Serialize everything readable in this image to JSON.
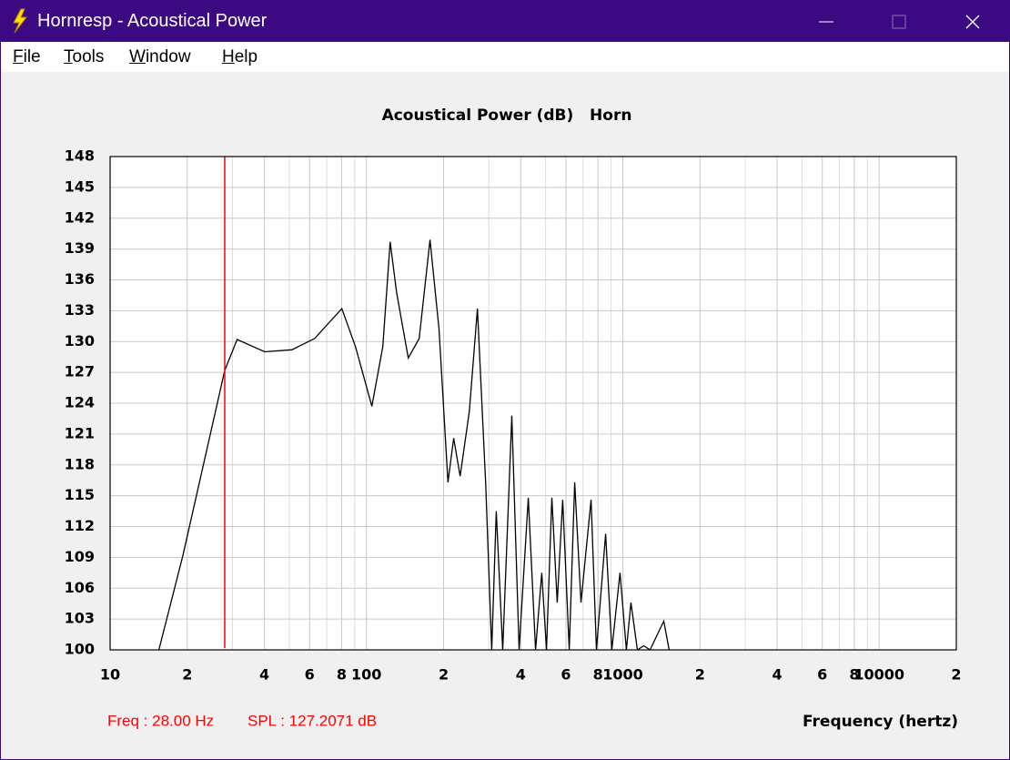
{
  "window": {
    "title": "Hornresp - Acoustical Power"
  },
  "menu": [
    "File",
    "Tools",
    "Window",
    "Help"
  ],
  "chart_data": {
    "type": "line",
    "title": "Acoustical Power (dB)   Horn",
    "x_label": "Frequency (hertz)",
    "xscale": "log",
    "grid": true,
    "xlim": [
      10,
      20000
    ],
    "ylim": [
      100,
      148
    ],
    "xticks": [
      10,
      {
        "value": 20,
        "label": "2"
      },
      {
        "value": 40,
        "label": "4"
      },
      {
        "value": 60,
        "label": "6"
      },
      {
        "value": 80,
        "label": "8"
      },
      100,
      {
        "value": 200,
        "label": "2"
      },
      {
        "value": 400,
        "label": "4"
      },
      {
        "value": 600,
        "label": "6"
      },
      {
        "value": 800,
        "label": "8"
      },
      1000,
      {
        "value": 2000,
        "label": "2"
      },
      {
        "value": 4000,
        "label": "4"
      },
      {
        "value": 6000,
        "label": "6"
      },
      {
        "value": 8000,
        "label": "8"
      },
      10000,
      {
        "value": 20000,
        "label": "2"
      }
    ],
    "xminorticks": [
      30,
      50,
      70,
      90,
      300,
      500,
      700,
      900,
      3000,
      5000,
      7000,
      9000
    ],
    "yticks": [
      100,
      103,
      106,
      109,
      112,
      115,
      118,
      121,
      124,
      127,
      130,
      133,
      136,
      139,
      142,
      145,
      148
    ],
    "series": [
      {
        "color": "#000000",
        "x": [
          15.5,
          19.2,
          28,
          31.3,
          40.1,
          51.2,
          62.8,
          80.2,
          90.6,
          105,
          115.8,
          123.7,
          131,
          145.6,
          160.6,
          177,
          192,
          208,
          219,
          232,
          252,
          271,
          292,
          308,
          321,
          340,
          369,
          394,
          428,
          457,
          483,
          504,
          529,
          555,
          583,
          618,
          649,
          687,
          752,
          789,
          857,
          906,
          975,
          1033,
          1076,
          1140,
          1208,
          1277,
          1445,
          1517
        ],
        "values": [
          100,
          109.1,
          127.2,
          130.2,
          129.0,
          129.2,
          130.3,
          133.2,
          129.5,
          123.7,
          129.5,
          139.7,
          134.8,
          128.4,
          130.3,
          139.9,
          131.2,
          116.3,
          120.6,
          116.9,
          123.2,
          133.2,
          116.1,
          100,
          113.5,
          100,
          122.8,
          100,
          114.8,
          100,
          107.5,
          100,
          114.8,
          104.6,
          114.6,
          100,
          116.3,
          104.6,
          114.6,
          100,
          111.3,
          100,
          107.5,
          100,
          104.6,
          100,
          100.4,
          100,
          102.8,
          100
        ]
      }
    ],
    "cursor": {
      "x": 28,
      "color": "#ff0000",
      "freq_label": "Freq : 28.00 Hz",
      "spl_label": "SPL : 127.2071 dB"
    }
  }
}
